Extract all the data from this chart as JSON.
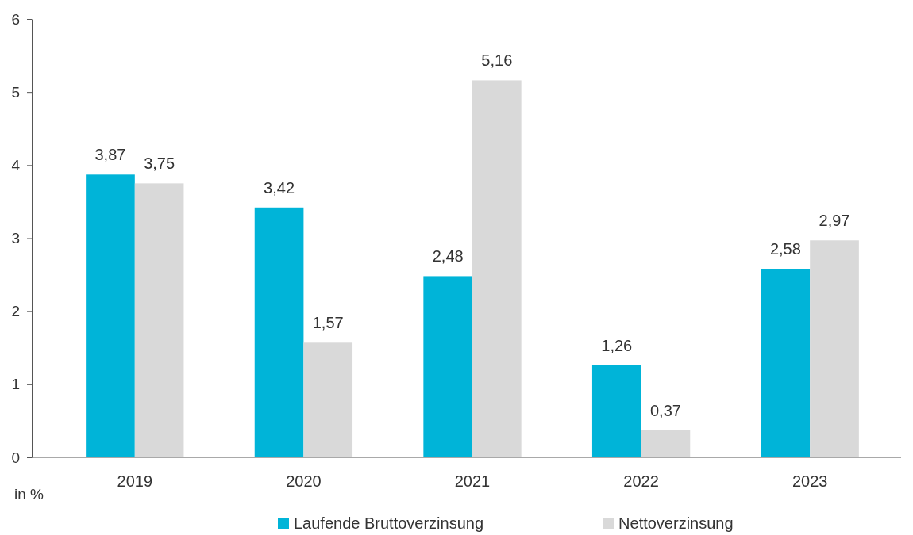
{
  "chart_data": {
    "type": "bar",
    "ylabel": "in %",
    "categories": [
      "2019",
      "2020",
      "2021",
      "2022",
      "2023"
    ],
    "series": [
      {
        "name": "Laufende Bruttoverzinsung",
        "color": "#00b4d8",
        "values": [
          3.87,
          3.42,
          2.48,
          1.26,
          2.58
        ],
        "value_labels": [
          "3,87",
          "3,42",
          "2,48",
          "1,26",
          "2,58"
        ]
      },
      {
        "name": "Nettoverzinsung",
        "color": "#d9d9d9",
        "values": [
          3.75,
          1.57,
          5.16,
          0.37,
          2.97
        ],
        "value_labels": [
          "3,75",
          "1,57",
          "5,16",
          "0,37",
          "2,97"
        ]
      }
    ],
    "ylim": [
      0,
      6
    ],
    "yticks": [
      0,
      1,
      2,
      3,
      4,
      5,
      6
    ],
    "grid": false,
    "legend": "bottom"
  }
}
